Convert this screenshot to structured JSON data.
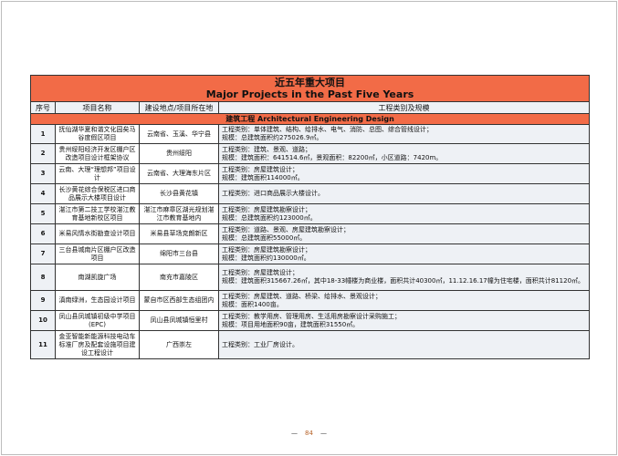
{
  "title_cn": "近五年重大项目",
  "title_en": "Major Projects in the Past Five Years",
  "headers": [
    "序号",
    "项目名称",
    "建设地点/项目所在地",
    "工程类别及规模"
  ],
  "section": "建筑工程  Architectural Engineering Design",
  "rows": [
    {
      "no": "1",
      "name": "抚仙湖华夏和谐文化园矣马谷度假区项目",
      "location": "云南省、玉溪、华宁县",
      "type": "工程类别：单体建筑、结构、给排水、电气、消防、总图、综合管线设计；",
      "scale": "规模：总建筑面积约275026.9㎡。"
    },
    {
      "no": "2",
      "name": "贵州绥阳经济开发区棚户区改造项目设计框架协议",
      "location": "贵州绥阳",
      "type": "工程类别：建筑、景观、道路；",
      "scale": "规模：建筑面积：641514.6㎡，景观面积：82200㎡，小区道路：7420m。"
    },
    {
      "no": "3",
      "name": "云南、大理“理想邦”项目设计",
      "location": "云南省、大理海东片区",
      "type": "工程类别：房屋建筑设计；",
      "scale": "规模：建筑面积114000㎡。"
    },
    {
      "no": "4",
      "name": "长沙黄花综合保税区进口商品展示大楼项目设计",
      "location": "长沙县黄花镇",
      "type": "工程类别：进口商品展示大楼设计。",
      "scale": ""
    },
    {
      "no": "5",
      "name": "湛江市第二技工学校湛江教育基地新校区项目",
      "location": "湛江市麻章区湖光规划湛江市教育基地内",
      "type": "工程类别：房屋建筑勘察设计；",
      "scale": "规模：总建筑面积约123000㎡。"
    },
    {
      "no": "6",
      "name": "米易风情水街勘查设计项目",
      "location": "米易县草场克朗新区",
      "type": "工程类别：道路、景观、房屋建筑勘察设计；",
      "scale": "规模：总建筑面积55000㎡。"
    },
    {
      "no": "7",
      "name": "三台县城南片区棚户区改造项目",
      "location": "绵阳市三台县",
      "type": "工程类别：房屋建筑勘察设计；",
      "scale": "规模：建筑面积约130000㎡。"
    },
    {
      "no": "8",
      "name": "南湖凯旋广场",
      "location": "南充市嘉陵区",
      "type": "工程类别：房屋建筑设计；",
      "scale": "规模：建筑面积315667.26㎡，其中18-33幢楼为商业楼，面积共计40300㎡，11.12.16.17幢为住宅楼，面积共计81120㎡。"
    },
    {
      "no": "9",
      "name": "滇南绿洲，生态园设计项目",
      "location": "蒙自市区西部生态组团内",
      "type": "工程类别：房屋建筑、道路、桥梁、给排水、景观设计；",
      "scale": "规模：面积1400亩。"
    },
    {
      "no": "10",
      "name": "凤山县凤城镇初级中学项目(EPC)",
      "location": "凤山县凤城镇恒里村",
      "type": "工程类别：教学用房、管理用房、生活用房勘察设计采购施工；",
      "scale": "规模：项目用地面积90亩，建筑面积31550㎡。"
    },
    {
      "no": "11",
      "name": "金亚智能新能源科技电动车标准厂房及配套设施项目建设工程设计",
      "location": "广西崇左",
      "type": "工程类别：工业厂房设计。",
      "scale": ""
    }
  ],
  "page_number": "84",
  "colors": {
    "header_bg": "#f26b47",
    "cell_bg": "#eef1f5"
  }
}
